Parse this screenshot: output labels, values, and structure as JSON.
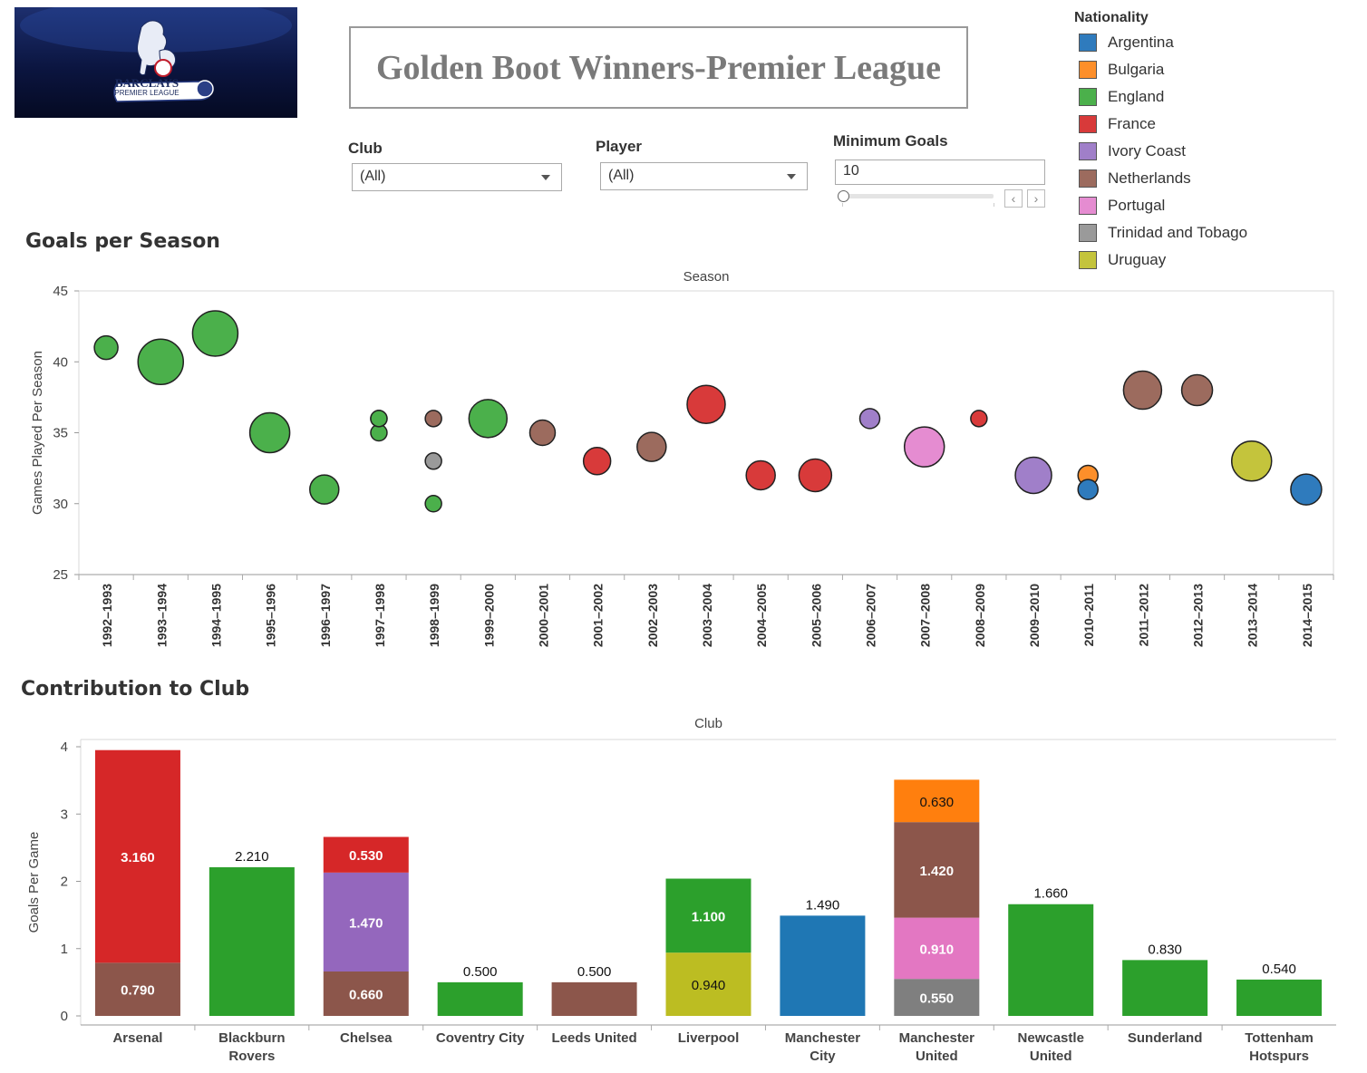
{
  "logo": {
    "line1": "BARCLAYS",
    "line2": "PREMIER LEAGUE"
  },
  "title": "Golden Boot Winners-Premier League",
  "filters": {
    "club": {
      "label": "Club",
      "value": "(All)"
    },
    "player": {
      "label": "Player",
      "value": "(All)"
    },
    "min_goals": {
      "label": "Minimum Goals",
      "value": "10"
    }
  },
  "legend": {
    "title": "Nationality",
    "items": [
      {
        "label": "Argentina",
        "color": "#2f7bbd"
      },
      {
        "label": "Bulgaria",
        "color": "#fd8f2a"
      },
      {
        "label": "England",
        "color": "#4bb04b"
      },
      {
        "label": "France",
        "color": "#d83a3a"
      },
      {
        "label": "Ivory Coast",
        "color": "#a07fc9"
      },
      {
        "label": "Netherlands",
        "color": "#9c6b5e"
      },
      {
        "label": "Portugal",
        "color": "#e58cd1"
      },
      {
        "label": "Trinidad and Tobago",
        "color": "#9a9a9a"
      },
      {
        "label": "Uruguay",
        "color": "#c4c43c"
      }
    ]
  },
  "chart_data": [
    {
      "type": "scatter",
      "section_title": "Goals per Season",
      "title": "Season",
      "ylabel": "Games Played Per Season",
      "ylim": [
        25,
        45
      ],
      "yticks": [
        25,
        30,
        35,
        40,
        45
      ],
      "categories": [
        "1992-1993",
        "1993-1994",
        "1994-1995",
        "1995-1996",
        "1996-1997",
        "1997-1998",
        "1998-1999",
        "1999-2000",
        "2000-2001",
        "2001-2002",
        "2002-2003",
        "2003-2004",
        "2004-2005",
        "2005-2006",
        "2006-2007",
        "2007-2008",
        "2008-2009",
        "2009-2010",
        "2010-2011",
        "2011-2012",
        "2012-2013",
        "2013-2014",
        "2014-2015"
      ],
      "points": [
        {
          "season": "1992-1993",
          "games": 41,
          "goals": 22,
          "nationality": "England"
        },
        {
          "season": "1993-1994",
          "games": 40,
          "goals": 34,
          "nationality": "England"
        },
        {
          "season": "1994-1995",
          "games": 42,
          "goals": 34,
          "nationality": "England"
        },
        {
          "season": "1995-1996",
          "games": 35,
          "goals": 31,
          "nationality": "England"
        },
        {
          "season": "1996-1997",
          "games": 31,
          "goals": 25,
          "nationality": "England"
        },
        {
          "season": "1997-1998",
          "games": 36,
          "goals": 18,
          "nationality": "England"
        },
        {
          "season": "1997-1998",
          "games": 35,
          "goals": 18,
          "nationality": "England"
        },
        {
          "season": "1997-1998",
          "games": 36,
          "goals": 18,
          "nationality": "England"
        },
        {
          "season": "1998-1999",
          "games": 36,
          "goals": 18,
          "nationality": "Netherlands"
        },
        {
          "season": "1998-1999",
          "games": 33,
          "goals": 18,
          "nationality": "Trinidad and Tobago"
        },
        {
          "season": "1998-1999",
          "games": 30,
          "goals": 18,
          "nationality": "England"
        },
        {
          "season": "1999-2000",
          "games": 36,
          "goals": 30,
          "nationality": "England"
        },
        {
          "season": "2000-2001",
          "games": 35,
          "goals": 23,
          "nationality": "Netherlands"
        },
        {
          "season": "2001-2002",
          "games": 33,
          "goals": 24,
          "nationality": "France"
        },
        {
          "season": "2002-2003",
          "games": 34,
          "goals": 25,
          "nationality": "Netherlands"
        },
        {
          "season": "2003-2004",
          "games": 37,
          "goals": 30,
          "nationality": "France"
        },
        {
          "season": "2004-2005",
          "games": 32,
          "goals": 25,
          "nationality": "France"
        },
        {
          "season": "2005-2006",
          "games": 32,
          "goals": 27,
          "nationality": "France"
        },
        {
          "season": "2006-2007",
          "games": 36,
          "goals": 20,
          "nationality": "Ivory Coast"
        },
        {
          "season": "2007-2008",
          "games": 34,
          "goals": 31,
          "nationality": "Portugal"
        },
        {
          "season": "2008-2009",
          "games": 36,
          "goals": 18,
          "nationality": "France"
        },
        {
          "season": "2009-2010",
          "games": 32,
          "goals": 29,
          "nationality": "Ivory Coast"
        },
        {
          "season": "2010-2011",
          "games": 32,
          "goals": 20,
          "nationality": "Bulgaria"
        },
        {
          "season": "2010-2011",
          "games": 31,
          "goals": 20,
          "nationality": "Argentina"
        },
        {
          "season": "2011-2012",
          "games": 38,
          "goals": 30,
          "nationality": "Netherlands"
        },
        {
          "season": "2012-2013",
          "games": 38,
          "goals": 26,
          "nationality": "Netherlands"
        },
        {
          "season": "2013-2014",
          "games": 33,
          "goals": 31,
          "nationality": "Uruguay"
        },
        {
          "season": "2014-2015",
          "games": 31,
          "goals": 26,
          "nationality": "Argentina"
        }
      ]
    },
    {
      "type": "bar",
      "stacked": true,
      "section_title": "Contribution to Club",
      "title": "Club",
      "ylabel": "Goals Per Game",
      "ylim": [
        0,
        4
      ],
      "yticks": [
        0,
        1,
        2,
        3,
        4
      ],
      "clubs": [
        {
          "name": "Arsenal",
          "lines": [
            "Arsenal"
          ],
          "stacks": [
            {
              "nationality": "Netherlands",
              "value": 0.79,
              "label": "0.790"
            },
            {
              "nationality": "France",
              "value": 3.16,
              "label": "3.160"
            }
          ]
        },
        {
          "name": "Blackburn Rovers",
          "lines": [
            "Blackburn",
            "Rovers"
          ],
          "stacks": [
            {
              "nationality": "England",
              "value": 2.21,
              "label": "2.210"
            }
          ]
        },
        {
          "name": "Chelsea",
          "lines": [
            "Chelsea"
          ],
          "stacks": [
            {
              "nationality": "Netherlands",
              "value": 0.66,
              "label": "0.660"
            },
            {
              "nationality": "Ivory Coast",
              "value": 1.47,
              "label": "1.470"
            },
            {
              "nationality": "France",
              "value": 0.53,
              "label": "0.530"
            }
          ]
        },
        {
          "name": "Coventry City",
          "lines": [
            "Coventry City"
          ],
          "stacks": [
            {
              "nationality": "England",
              "value": 0.5,
              "label": "0.500"
            }
          ]
        },
        {
          "name": "Leeds United",
          "lines": [
            "Leeds United"
          ],
          "stacks": [
            {
              "nationality": "Netherlands",
              "value": 0.5,
              "label": "0.500"
            }
          ]
        },
        {
          "name": "Liverpool",
          "lines": [
            "Liverpool"
          ],
          "stacks": [
            {
              "nationality": "Uruguay",
              "value": 0.94,
              "label": "0.940"
            },
            {
              "nationality": "England",
              "value": 1.1,
              "label": "1.100"
            }
          ]
        },
        {
          "name": "Manchester City",
          "lines": [
            "Manchester",
            "City"
          ],
          "stacks": [
            {
              "nationality": "Argentina",
              "value": 1.49,
              "label": "1.490"
            }
          ]
        },
        {
          "name": "Manchester United",
          "lines": [
            "Manchester",
            "United"
          ],
          "stacks": [
            {
              "nationality": "Trinidad and Tobago",
              "value": 0.55,
              "label": "0.550"
            },
            {
              "nationality": "Portugal",
              "value": 0.91,
              "label": "0.910"
            },
            {
              "nationality": "Netherlands",
              "value": 1.42,
              "label": "1.420"
            },
            {
              "nationality": "Bulgaria",
              "value": 0.63,
              "label": "0.630"
            }
          ]
        },
        {
          "name": "Newcastle United",
          "lines": [
            "Newcastle",
            "United"
          ],
          "stacks": [
            {
              "nationality": "England",
              "value": 1.66,
              "label": "1.660"
            }
          ]
        },
        {
          "name": "Sunderland",
          "lines": [
            "Sunderland"
          ],
          "stacks": [
            {
              "nationality": "England",
              "value": 0.83,
              "label": "0.830"
            }
          ]
        },
        {
          "name": "Tottenham Hotspurs",
          "lines": [
            "Tottenham",
            "Hotspurs"
          ],
          "stacks": [
            {
              "nationality": "England",
              "value": 0.54,
              "label": "0.540"
            }
          ]
        }
      ]
    }
  ],
  "bar_colors": {
    "Argentina": "#1f77b4",
    "Bulgaria": "#ff7f0e",
    "England": "#2ca02c",
    "France": "#d62728",
    "Ivory Coast": "#9467bd",
    "Netherlands": "#8c564b",
    "Portugal": "#e377c2",
    "Trinidad and Tobago": "#7f7f7f",
    "Uruguay": "#bcbd22"
  }
}
